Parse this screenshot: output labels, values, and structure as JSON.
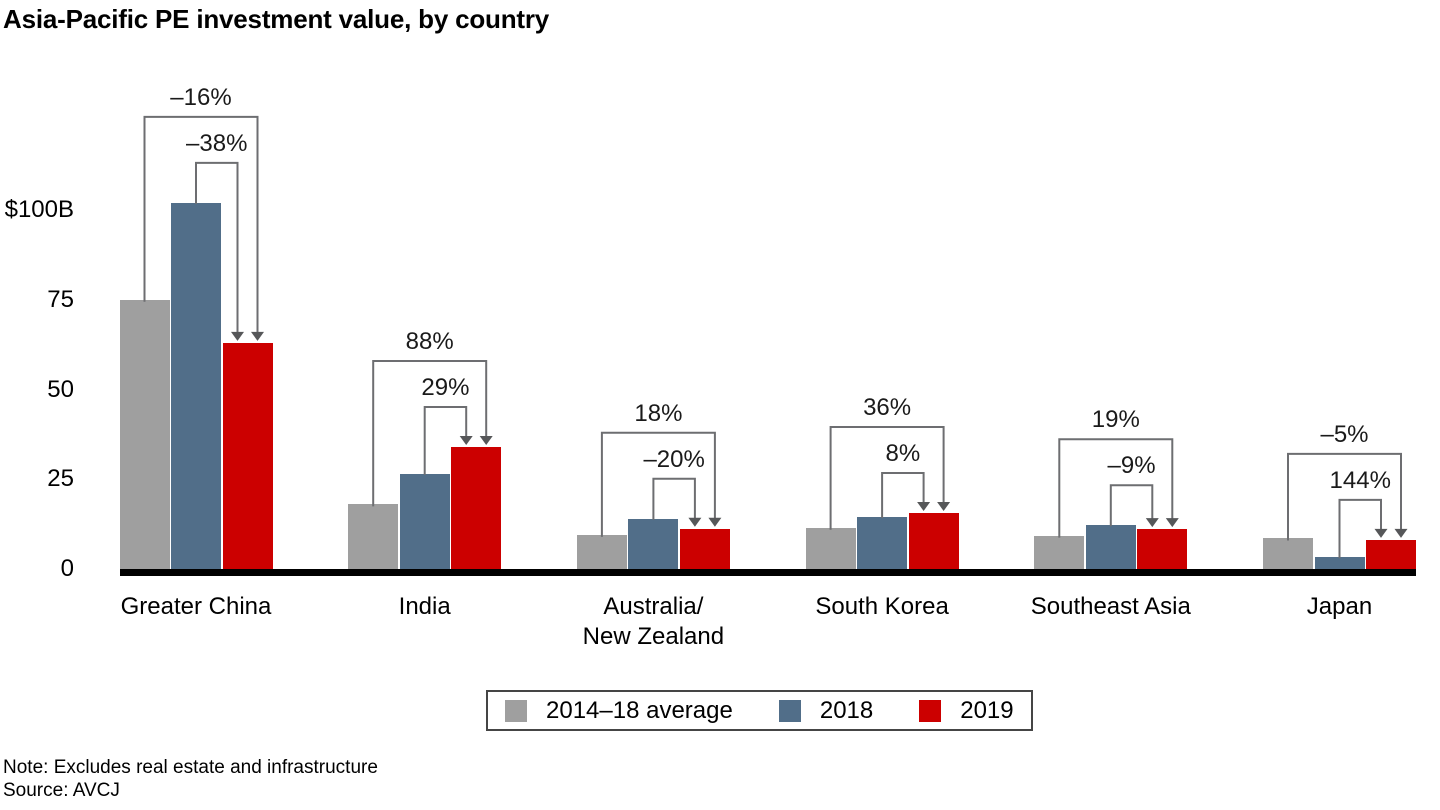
{
  "title": "Asia-Pacific PE investment value, by country",
  "footer": {
    "note": "Note: Excludes real estate and infrastructure",
    "source": "Source: AVCJ"
  },
  "chart_data": {
    "type": "bar",
    "title": "Asia-Pacific PE investment value, by country",
    "unit_note": "values in US$ billions as implied by $100B axis tick",
    "categories": [
      "Greater China",
      "India",
      "Australia/\nNew Zealand",
      "South Korea",
      "Southeast Asia",
      "Japan"
    ],
    "series": [
      {
        "name": "2014–18 average",
        "color": "#9f9f9f",
        "values": [
          75,
          18,
          9.5,
          11.5,
          9.3,
          8.5
        ]
      },
      {
        "name": "2018",
        "color": "#516e89",
        "values": [
          102,
          26.5,
          14,
          14.5,
          12.2,
          3.3
        ]
      },
      {
        "name": "2019",
        "color": "#cc0000",
        "values": [
          63,
          34,
          11.2,
          15.6,
          11.1,
          8.1
        ]
      }
    ],
    "annotations": [
      {
        "category": "Greater China",
        "outer": "–16%",
        "inner": "–38%"
      },
      {
        "category": "India",
        "outer": "88%",
        "inner": "29%"
      },
      {
        "category": "Australia/New Zealand",
        "outer": "18%",
        "inner": "–20%"
      },
      {
        "category": "South Korea",
        "outer": "36%",
        "inner": "8%"
      },
      {
        "category": "Southeast Asia",
        "outer": "19%",
        "inner": "–9%"
      },
      {
        "category": "Japan",
        "outer": "–5%",
        "inner": "144%"
      }
    ],
    "y_ticks": [
      {
        "value": 100,
        "label": "$100B"
      },
      {
        "value": 75,
        "label": "75"
      },
      {
        "value": 50,
        "label": "50"
      },
      {
        "value": 25,
        "label": "25"
      },
      {
        "value": 0,
        "label": "0"
      }
    ],
    "ylim": [
      0,
      110
    ],
    "xlabel": "",
    "ylabel": "",
    "grid": false,
    "legend_position": "bottom-center",
    "colors": {
      "bracket_line": "#6d6e71",
      "arrowhead": "#565759",
      "axis_line": "#000000",
      "legend_border": "#454545"
    }
  }
}
